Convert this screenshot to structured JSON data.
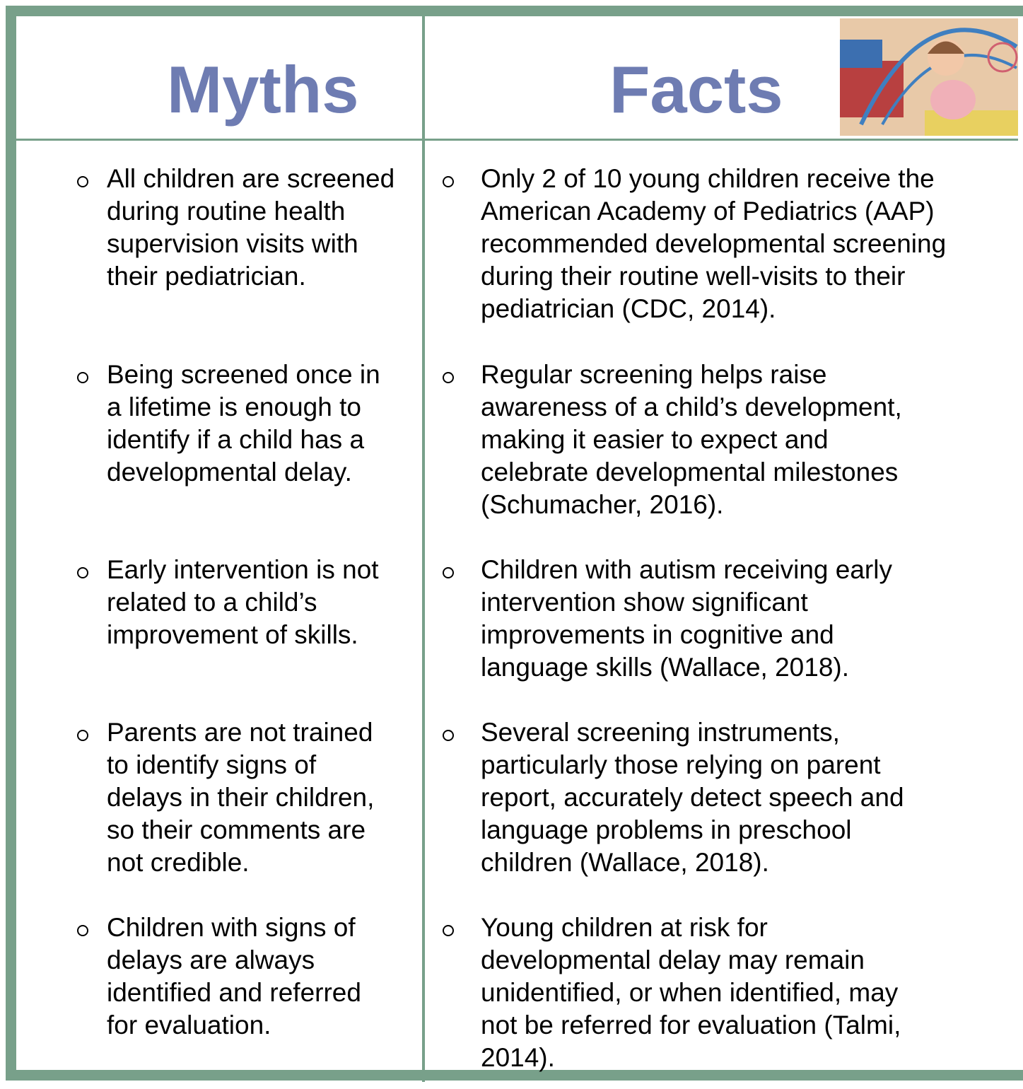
{
  "header": {
    "myths": "Myths",
    "facts": "Facts"
  },
  "rows": [
    {
      "myth": [
        "All children are screened",
        "during routine health",
        "supervision visits with",
        "their pediatrician."
      ],
      "fact": [
        "Only 2 of 10 young children receive the",
        "American Academy of Pediatrics (AAP)",
        "recommended developmental screening",
        "during their routine well-visits to their",
        "pediatrician (CDC, 2014)."
      ]
    },
    {
      "myth": [
        "Being screened once in",
        "a lifetime is enough to",
        "identify if a child has a",
        "developmental delay."
      ],
      "fact": [
        "Regular screening helps raise",
        "awareness of a child’s development,",
        "making it easier to expect and",
        "celebrate developmental milestones",
        "(Schumacher, 2016)."
      ]
    },
    {
      "myth": [
        "Early intervention is not",
        "related to a child’s",
        "improvement of skills."
      ],
      "fact": [
        "Children with autism receiving early",
        "intervention show significant",
        "improvements in cognitive and",
        "language skills (Wallace, 2018)."
      ]
    },
    {
      "myth": [
        "Parents are not trained",
        "to identify signs of",
        "delays in their children,",
        "so their comments are",
        "not credible."
      ],
      "fact": [
        "Several screening instruments,",
        "particularly those relying on parent",
        "report, accurately detect speech and",
        "language problems in preschool",
        "children (Wallace, 2018)."
      ]
    },
    {
      "myth": [
        "Children with signs of",
        "delays are always",
        "identified and referred",
        "for evaluation."
      ],
      "fact": [
        "Young children at risk for",
        "developmental delay may remain",
        "unidentified, or when identified, may",
        "not be referred for evaluation (Talmi,",
        "2014)."
      ]
    }
  ]
}
